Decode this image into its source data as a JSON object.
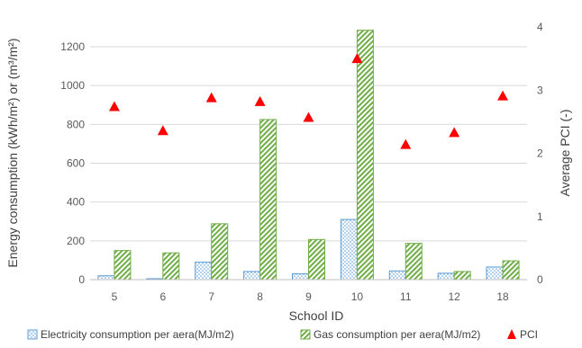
{
  "chart_data": {
    "type": "bar",
    "categories": [
      "5",
      "6",
      "7",
      "8",
      "9",
      "10",
      "11",
      "12",
      "18"
    ],
    "xlabel": "School ID",
    "ylabel": "Energy consumption (kWh/m²) or (m³/m²)",
    "y2label": "Average PCI (-)",
    "ylim": [
      0,
      1300
    ],
    "y2lim": [
      0,
      4
    ],
    "yticks": [
      0,
      200,
      400,
      600,
      800,
      1000,
      1200
    ],
    "y2ticks": [
      0,
      1,
      2,
      3,
      4
    ],
    "grid": true,
    "legend_position": "bottom",
    "series": [
      {
        "name": "Electricity consumption per aera(MJ/m2)",
        "type": "bar",
        "axis": "left",
        "color": "#5b9bd5",
        "values": [
          20,
          5,
          90,
          42,
          30,
          310,
          45,
          33,
          65
        ]
      },
      {
        "name": "Gas consumption per aera(MJ/m2)",
        "type": "bar",
        "axis": "left",
        "color": "#70ad47",
        "values": [
          150,
          138,
          288,
          825,
          207,
          1285,
          187,
          42,
          97
        ]
      },
      {
        "name": "PCI",
        "type": "scatter",
        "axis": "right",
        "color": "#ff0000",
        "values": [
          2.74,
          2.36,
          2.88,
          2.82,
          2.57,
          3.5,
          2.14,
          2.33,
          2.91
        ]
      }
    ]
  }
}
